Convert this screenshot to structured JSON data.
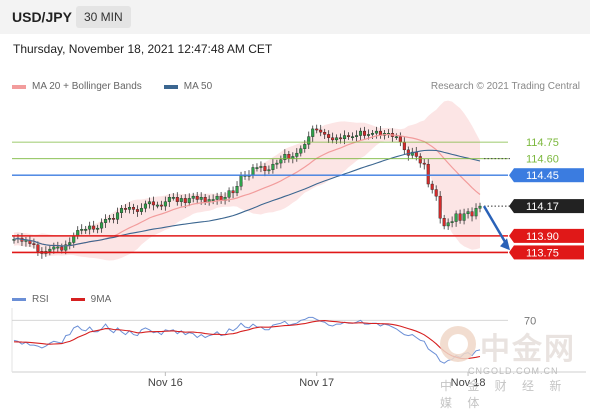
{
  "header": {
    "symbol": "USD/JPY",
    "timeframe": "30 MIN",
    "datetime": "Thursday, November 18, 2021 12:47:48 AM CET"
  },
  "legend": {
    "items": [
      {
        "label": "MA 20 + Bollinger Bands",
        "color": "#f29c9c"
      },
      {
        "label": "MA 50",
        "color": "#3b6690"
      }
    ],
    "credit": "Research © 2021 Trading Central"
  },
  "rsi_legend": {
    "items": [
      {
        "label": "RSI",
        "color": "#6b8fd6"
      },
      {
        "label": "9MA",
        "color": "#d62020"
      }
    ]
  },
  "watermark": {
    "big": "中金网",
    "url": "CNGOLD.COM.CN",
    "small": "中 金 财 经 新 媒 体"
  },
  "chart_data": {
    "type": "candlestick",
    "x_ticks": [
      "Nov 16",
      "Nov 17",
      "Nov 18"
    ],
    "price_ylim": [
      113.5,
      115.15
    ],
    "rsi_ylim": [
      20,
      85
    ],
    "rsi_level_label": "70",
    "levels": [
      {
        "value": 114.75,
        "label": "114.75",
        "kind": "green-line",
        "color": "#7cb83e"
      },
      {
        "value": 114.6,
        "label": "114.60",
        "kind": "green-line",
        "color": "#7cb83e"
      },
      {
        "value": 114.45,
        "label": "114.45",
        "kind": "blue-tag",
        "color": "#3b7ce0"
      },
      {
        "value": 114.17,
        "label": "114.17",
        "kind": "current-tag",
        "color": "#222222"
      },
      {
        "value": 113.9,
        "label": "113.90",
        "kind": "red-tag",
        "color": "#e01818"
      },
      {
        "value": 113.75,
        "label": "113.75",
        "kind": "red-tag",
        "color": "#e01818"
      }
    ],
    "forecast_arrow": {
      "from": 114.17,
      "to": 113.77,
      "color": "#2a62b8"
    },
    "colors": {
      "up": "#2ea14a",
      "down": "#d62b2b",
      "ma20": "#f29c9c",
      "ma50": "#3b6690",
      "band": "#fbdcdc"
    },
    "close": [
      113.87,
      113.88,
      113.85,
      113.86,
      113.83,
      113.82,
      113.76,
      113.74,
      113.76,
      113.78,
      113.8,
      113.8,
      113.77,
      113.82,
      113.84,
      113.9,
      113.95,
      113.96,
      113.96,
      113.99,
      113.96,
      113.97,
      114.02,
      114.05,
      114.06,
      114.05,
      114.11,
      114.15,
      114.14,
      114.16,
      114.14,
      114.12,
      114.15,
      114.19,
      114.21,
      114.18,
      114.18,
      114.17,
      114.21,
      114.25,
      114.25,
      114.21,
      114.24,
      114.2,
      114.24,
      114.26,
      114.23,
      114.25,
      114.21,
      114.23,
      114.23,
      114.26,
      114.22,
      114.25,
      114.31,
      114.29,
      114.35,
      114.45,
      114.45,
      114.45,
      114.52,
      114.52,
      114.53,
      114.49,
      114.5,
      114.55,
      114.56,
      114.59,
      114.64,
      114.6,
      114.62,
      114.65,
      114.69,
      114.73,
      114.8,
      114.87,
      114.86,
      114.84,
      114.82,
      114.79,
      114.77,
      114.79,
      114.78,
      114.81,
      114.8,
      114.8,
      114.81,
      114.85,
      114.81,
      114.82,
      114.83,
      114.85,
      114.81,
      114.83,
      114.83,
      114.8,
      114.8,
      114.75,
      114.68,
      114.63,
      114.66,
      114.62,
      114.56,
      114.55,
      114.37,
      114.32,
      114.26,
      114.06,
      113.99,
      114.02,
      114.03,
      114.1,
      114.04,
      114.1,
      114.12,
      114.08,
      114.15,
      114.17
    ],
    "rsi": [
      49,
      48,
      45,
      47,
      44,
      44,
      43,
      41,
      43,
      46,
      48,
      47,
      46,
      54,
      55,
      62,
      64,
      60,
      59,
      63,
      58,
      58,
      61,
      66,
      60,
      57,
      62,
      58,
      55,
      59,
      55,
      54,
      60,
      62,
      60,
      57,
      58,
      55,
      60,
      59,
      60,
      56,
      59,
      55,
      57,
      56,
      52,
      55,
      52,
      54,
      55,
      58,
      54,
      55,
      61,
      59,
      62,
      67,
      63,
      62,
      66,
      63,
      63,
      60,
      60,
      65,
      66,
      67,
      69,
      65,
      66,
      67,
      70,
      71,
      73,
      73,
      71,
      69,
      68,
      65,
      64,
      66,
      66,
      68,
      67,
      67,
      68,
      70,
      66,
      66,
      67,
      67,
      64,
      66,
      65,
      63,
      61,
      58,
      55,
      54,
      55,
      52,
      49,
      48,
      40,
      37,
      34,
      27,
      25,
      28,
      29,
      33,
      31,
      35,
      36,
      33,
      38,
      39
    ],
    "rsi_ma": [
      47.5,
      47.4,
      47.2,
      47.1,
      46.8,
      46.4,
      46.0,
      45.6,
      45.1,
      44.9,
      45.2,
      45.4,
      45.6,
      46.8,
      47.9,
      49.8,
      52.1,
      53.9,
      55.5,
      57.7,
      58.6,
      59.4,
      60.3,
      61.3,
      61.2,
      60.4,
      60.2,
      59.8,
      59.3,
      58.9,
      57.8,
      56.9,
      57.0,
      57.6,
      58.1,
      58.1,
      58.3,
      58.2,
      58.6,
      58.7,
      59.0,
      58.4,
      58.1,
      57.5,
      57.7,
      57.6,
      57.2,
      56.9,
      56.1,
      55.6,
      55.2,
      55.4,
      55.0,
      54.9,
      55.6,
      56.0,
      56.9,
      58.4,
      59.2,
      60.2,
      61.6,
      62.4,
      63.0,
      62.8,
      62.8,
      63.2,
      63.6,
      64.0,
      64.5,
      64.6,
      65.0,
      65.4,
      66.0,
      66.6,
      67.5,
      68.4,
      69.1,
      69.5,
      69.7,
      69.2,
      68.9,
      68.5,
      68.0,
      67.7,
      67.4,
      67.1,
      67.2,
      67.5,
      67.2,
      66.9,
      66.7,
      66.7,
      66.4,
      66.3,
      66.2,
      65.7,
      64.9,
      63.9,
      62.6,
      61.3,
      60.1,
      58.6,
      56.8,
      54.8,
      51.9,
      48.8,
      45.4,
      41.3,
      37.7,
      34.9,
      32.7,
      31.3,
      30.2,
      29.8,
      30.1,
      30.6,
      31.2,
      32.1
    ]
  }
}
